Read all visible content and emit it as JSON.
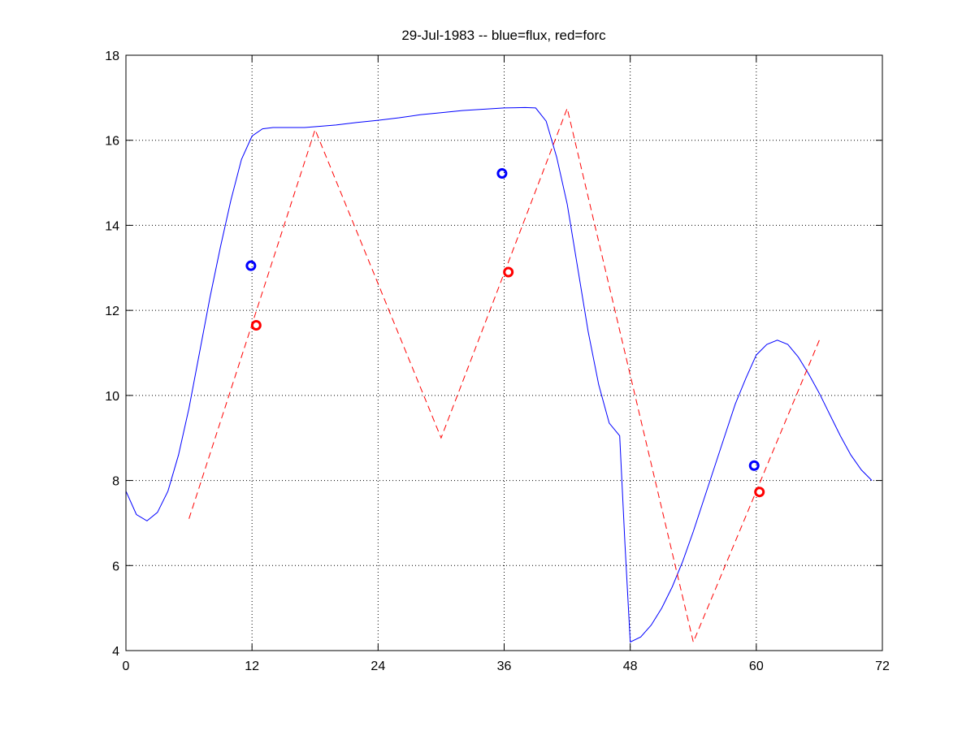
{
  "chart_data": {
    "type": "line",
    "title": "29-Jul-1983 -- blue=flux, red=forc",
    "xlabel": "",
    "ylabel": "",
    "xlim": [
      0,
      72
    ],
    "ylim": [
      4,
      18
    ],
    "xticks": [
      0,
      12,
      24,
      36,
      48,
      60,
      72
    ],
    "yticks": [
      4,
      6,
      8,
      10,
      12,
      14,
      16,
      18
    ],
    "grid": true,
    "series": [
      {
        "color": "#0000ff",
        "style": "solid",
        "x": [
          0,
          1,
          2,
          3,
          4,
          5,
          6,
          7,
          8,
          9,
          10,
          11,
          12,
          13,
          14,
          15,
          16,
          17,
          18,
          20,
          22,
          24,
          26,
          28,
          30,
          32,
          34,
          36,
          38,
          39,
          40,
          41,
          42,
          43,
          44,
          45,
          46,
          47,
          47.5,
          48,
          49,
          50,
          51,
          52,
          53,
          54,
          55,
          56,
          57,
          58,
          59,
          60,
          61,
          62,
          63,
          64,
          65,
          66,
          67,
          68,
          69,
          70,
          71
        ],
        "values": [
          7.75,
          7.2,
          7.05,
          7.25,
          7.75,
          8.6,
          9.7,
          11.0,
          12.3,
          13.5,
          14.6,
          15.55,
          16.1,
          16.27,
          16.3,
          16.3,
          16.3,
          16.3,
          16.32,
          16.36,
          16.42,
          16.47,
          16.53,
          16.6,
          16.65,
          16.7,
          16.73,
          16.76,
          16.77,
          16.76,
          16.45,
          15.6,
          14.5,
          13.0,
          11.5,
          10.25,
          9.35,
          9.05,
          6.5,
          4.2,
          4.32,
          4.6,
          5.0,
          5.5,
          6.1,
          6.8,
          7.55,
          8.3,
          9.05,
          9.8,
          10.4,
          10.95,
          11.2,
          11.3,
          11.2,
          10.9,
          10.5,
          10.05,
          9.55,
          9.05,
          8.6,
          8.25,
          8.0
        ]
      },
      {
        "color": "#ff0000",
        "style": "dashed",
        "x": [
          6,
          18,
          30,
          42,
          54,
          66
        ],
        "values": [
          7.1,
          16.25,
          9.0,
          16.75,
          4.2,
          11.3
        ]
      }
    ],
    "markers": [
      {
        "color": "#0000ff",
        "x": 11.9,
        "y": 13.05
      },
      {
        "color": "#ff0000",
        "x": 12.4,
        "y": 11.65
      },
      {
        "color": "#0000ff",
        "x": 35.8,
        "y": 15.22
      },
      {
        "color": "#ff0000",
        "x": 36.4,
        "y": 12.9
      },
      {
        "color": "#0000ff",
        "x": 59.8,
        "y": 8.35
      },
      {
        "color": "#ff0000",
        "x": 60.3,
        "y": 7.73
      }
    ]
  }
}
